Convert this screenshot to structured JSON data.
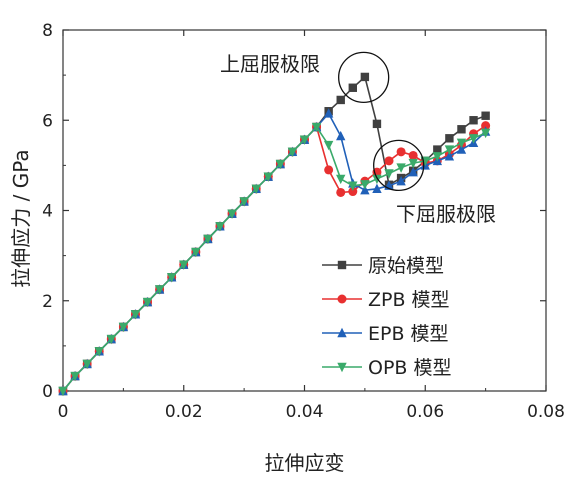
{
  "chart_data": {
    "type": "line",
    "xlabel": "拉伸应变",
    "ylabel": "拉伸应力 / GPa",
    "xlim": [
      0,
      0.08
    ],
    "ylim": [
      0,
      8
    ],
    "x_ticks": [
      "0",
      "0.02",
      "0.04",
      "0.06",
      "0.08"
    ],
    "y_ticks": [
      "0",
      "2",
      "4",
      "6",
      "8"
    ],
    "grid": false,
    "legend_position": "bottom-right",
    "annotations": [
      {
        "text": "上屈服极限",
        "circle_center": [
          0.0498,
          6.95
        ]
      },
      {
        "text": "下屈服极限",
        "circle_center": [
          0.0556,
          5.0
        ]
      }
    ],
    "series": [
      {
        "name": "原始模型",
        "color": "#404040",
        "marker": "square",
        "x": [
          0,
          0.002,
          0.004,
          0.006,
          0.008,
          0.01,
          0.012,
          0.014,
          0.016,
          0.018,
          0.02,
          0.022,
          0.024,
          0.026,
          0.028,
          0.03,
          0.032,
          0.034,
          0.036,
          0.038,
          0.04,
          0.042,
          0.044,
          0.046,
          0.048,
          0.05,
          0.052,
          0.054,
          0.056,
          0.058,
          0.06,
          0.062,
          0.064,
          0.066,
          0.068,
          0.07
        ],
        "y": [
          0,
          0.33,
          0.6,
          0.88,
          1.15,
          1.42,
          1.7,
          1.97,
          2.25,
          2.52,
          2.8,
          3.08,
          3.37,
          3.65,
          3.93,
          4.2,
          4.48,
          4.75,
          5.03,
          5.3,
          5.57,
          5.85,
          6.2,
          6.45,
          6.72,
          6.96,
          5.92,
          4.57,
          4.72,
          4.88,
          5.1,
          5.35,
          5.6,
          5.8,
          6.0,
          6.1
        ]
      },
      {
        "name": "ZPB 模型",
        "color": "#e83030",
        "marker": "circle",
        "x": [
          0,
          0.002,
          0.004,
          0.006,
          0.008,
          0.01,
          0.012,
          0.014,
          0.016,
          0.018,
          0.02,
          0.022,
          0.024,
          0.026,
          0.028,
          0.03,
          0.032,
          0.034,
          0.036,
          0.038,
          0.04,
          0.042,
          0.044,
          0.046,
          0.048,
          0.05,
          0.052,
          0.054,
          0.056,
          0.058,
          0.06,
          0.062,
          0.064,
          0.066,
          0.068,
          0.07
        ],
        "y": [
          0,
          0.33,
          0.6,
          0.88,
          1.15,
          1.42,
          1.7,
          1.97,
          2.25,
          2.52,
          2.8,
          3.08,
          3.37,
          3.65,
          3.93,
          4.2,
          4.48,
          4.75,
          5.03,
          5.3,
          5.57,
          5.85,
          4.9,
          4.4,
          4.42,
          4.65,
          4.85,
          5.1,
          5.3,
          5.22,
          5.05,
          5.1,
          5.25,
          5.45,
          5.7,
          5.88
        ]
      },
      {
        "name": "EPB 模型",
        "color": "#2060b8",
        "marker": "triangle-up",
        "x": [
          0,
          0.002,
          0.004,
          0.006,
          0.008,
          0.01,
          0.012,
          0.014,
          0.016,
          0.018,
          0.02,
          0.022,
          0.024,
          0.026,
          0.028,
          0.03,
          0.032,
          0.034,
          0.036,
          0.038,
          0.04,
          0.042,
          0.044,
          0.046,
          0.048,
          0.05,
          0.052,
          0.054,
          0.056,
          0.058,
          0.06,
          0.062,
          0.064,
          0.066,
          0.068,
          0.07
        ],
        "y": [
          0,
          0.33,
          0.6,
          0.88,
          1.15,
          1.42,
          1.7,
          1.97,
          2.25,
          2.52,
          2.8,
          3.08,
          3.37,
          3.65,
          3.93,
          4.2,
          4.48,
          4.75,
          5.03,
          5.3,
          5.57,
          5.85,
          6.15,
          5.65,
          4.6,
          4.45,
          4.48,
          4.55,
          4.65,
          4.85,
          5.0,
          5.1,
          5.2,
          5.35,
          5.5,
          5.75
        ]
      },
      {
        "name": "OPB 模型",
        "color": "#3aaa6a",
        "marker": "triangle-down",
        "x": [
          0,
          0.002,
          0.004,
          0.006,
          0.008,
          0.01,
          0.012,
          0.014,
          0.016,
          0.018,
          0.02,
          0.022,
          0.024,
          0.026,
          0.028,
          0.03,
          0.032,
          0.034,
          0.036,
          0.038,
          0.04,
          0.042,
          0.044,
          0.046,
          0.048,
          0.05,
          0.052,
          0.054,
          0.056,
          0.058,
          0.06,
          0.062,
          0.064,
          0.066,
          0.068,
          0.07
        ],
        "y": [
          0,
          0.33,
          0.6,
          0.88,
          1.15,
          1.42,
          1.7,
          1.97,
          2.25,
          2.52,
          2.8,
          3.08,
          3.37,
          3.65,
          3.93,
          4.2,
          4.48,
          4.75,
          5.03,
          5.3,
          5.57,
          5.85,
          5.45,
          4.7,
          4.55,
          4.58,
          4.7,
          4.82,
          4.95,
          5.05,
          5.1,
          5.2,
          5.35,
          5.5,
          5.6,
          5.72
        ]
      }
    ]
  }
}
